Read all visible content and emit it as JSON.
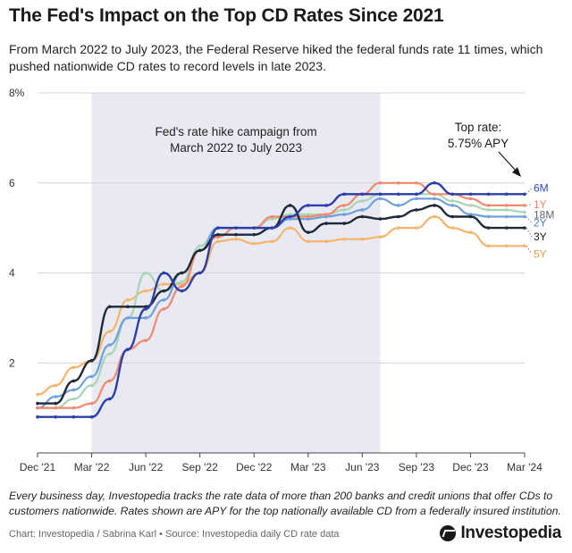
{
  "header": {
    "title": "The Fed's Impact on the Top CD Rates Since 2021",
    "subtitle": "From March 2022 to July 2023, the Federal Reserve hiked the federal funds rate 11 times, which pushed nationwide CD rates to record levels in late 2023."
  },
  "footer": {
    "footnote": "Every business day, Investopedia tracks the rate data of more than 200 banks and credit unions that offer CDs to customers nationwide. Rates shown are APY for the top nationally available CD from a federally insured institution.",
    "credit": "Chart: Investopedia / Sabrina Karl • Source: Investopedia daily CD rate data",
    "logo_text": "Investopedia"
  },
  "chart_data": {
    "type": "line",
    "title": "",
    "xlabel": "",
    "ylabel": "",
    "ylim": [
      0,
      8
    ],
    "y_ticks": [
      2,
      4,
      6,
      8
    ],
    "y_tick_labels": [
      "2",
      "4",
      "6",
      "8%"
    ],
    "x_ticks": [
      "2021-12",
      "2022-03",
      "2022-06",
      "2022-09",
      "2022-12",
      "2023-03",
      "2023-06",
      "2023-09",
      "2023-12",
      "2024-03"
    ],
    "x_tick_labels": [
      "Dec '21",
      "Mar '22",
      "Jun '22",
      "Sep '22",
      "Dec '22",
      "Mar '23",
      "Jun '23",
      "Sep '23",
      "Dec '23",
      "Mar '24"
    ],
    "grid": "horizontal",
    "shaded_period": {
      "start": "2022-03",
      "end": "2023-07",
      "label_line1": "Fed's rate hike campaign from",
      "label_line2": "March 2022 to July 2023",
      "color": "#e8e9f3"
    },
    "annotation": {
      "line1": "Top rate:",
      "line2": "5.75% APY"
    },
    "x": [
      "2021-12",
      "2022-01",
      "2022-02",
      "2022-03",
      "2022-04",
      "2022-05",
      "2022-06",
      "2022-07",
      "2022-08",
      "2022-09",
      "2022-10",
      "2022-11",
      "2022-12",
      "2023-01",
      "2023-02",
      "2023-03",
      "2023-04",
      "2023-05",
      "2023-06",
      "2023-07",
      "2023-08",
      "2023-09",
      "2023-10",
      "2023-11",
      "2023-12",
      "2024-01",
      "2024-02",
      "2024-03"
    ],
    "series": [
      {
        "name": "6M",
        "color": "#2c3eaa",
        "label_color": "#3347b5",
        "values": [
          0.8,
          0.8,
          0.8,
          0.8,
          1.2,
          2.3,
          3.2,
          4.0,
          3.6,
          4.0,
          5.0,
          5.0,
          5.0,
          5.0,
          5.25,
          5.5,
          5.5,
          5.75,
          5.75,
          5.75,
          5.75,
          5.75,
          6.0,
          5.75,
          5.75,
          5.75,
          5.75,
          5.75
        ]
      },
      {
        "name": "1Y",
        "color": "#ef8a6c",
        "label_color": "#e8825f",
        "values": [
          1.0,
          1.0,
          1.0,
          1.1,
          1.6,
          2.3,
          2.5,
          3.2,
          3.7,
          4.5,
          4.8,
          5.0,
          5.0,
          5.25,
          5.25,
          5.25,
          5.3,
          5.5,
          5.75,
          6.0,
          6.0,
          6.0,
          5.75,
          5.75,
          5.65,
          5.5,
          5.5,
          5.5
        ]
      },
      {
        "name": "18M",
        "color": "#a8d5b5",
        "label_color": "#666666",
        "values": [
          1.0,
          1.0,
          1.2,
          1.5,
          2.2,
          3.0,
          4.0,
          3.6,
          3.8,
          4.6,
          5.0,
          5.0,
          5.0,
          5.2,
          5.3,
          5.3,
          5.3,
          5.4,
          5.6,
          5.75,
          5.75,
          5.75,
          5.75,
          5.6,
          5.5,
          5.4,
          5.4,
          5.35
        ]
      },
      {
        "name": "2Y",
        "color": "#6fa0dd",
        "label_color": "#4a7fd0",
        "values": [
          1.0,
          1.25,
          1.4,
          1.7,
          2.4,
          3.0,
          3.0,
          3.4,
          4.0,
          4.5,
          5.0,
          5.0,
          5.0,
          5.0,
          5.2,
          5.2,
          5.25,
          5.3,
          5.4,
          5.65,
          5.5,
          5.65,
          5.65,
          5.5,
          5.3,
          5.25,
          5.25,
          5.25
        ]
      },
      {
        "name": "3Y",
        "color": "#1e2a3a",
        "label_color": "#1a1a1a",
        "values": [
          1.1,
          1.1,
          1.6,
          2.05,
          3.25,
          3.25,
          3.25,
          3.6,
          4.0,
          4.5,
          4.85,
          4.85,
          4.85,
          5.0,
          5.5,
          4.9,
          5.1,
          5.1,
          5.25,
          5.2,
          5.25,
          5.4,
          5.5,
          5.25,
          5.25,
          5.0,
          5.0,
          5.0
        ]
      },
      {
        "name": "5Y",
        "color": "#f6b46b",
        "label_color": "#f0963c",
        "values": [
          1.3,
          1.5,
          1.9,
          2.05,
          2.7,
          3.4,
          3.6,
          3.75,
          3.75,
          4.0,
          4.7,
          4.75,
          4.65,
          4.7,
          5.0,
          4.7,
          4.7,
          4.75,
          4.75,
          4.8,
          5.0,
          5.0,
          5.25,
          5.0,
          4.9,
          4.6,
          4.6,
          4.6
        ]
      }
    ]
  }
}
